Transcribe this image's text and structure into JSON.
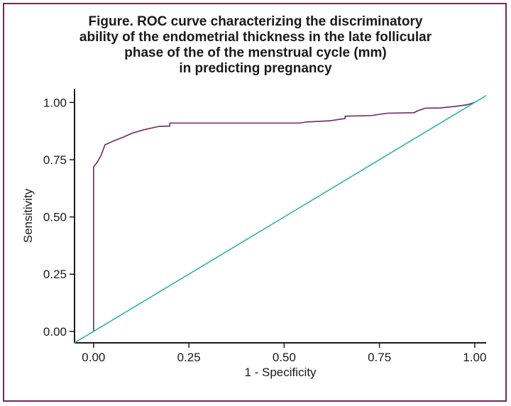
{
  "chart_data": {
    "type": "line",
    "title_lines": [
      "Figure. ROC curve characterizing the discriminatory",
      "ability of the endometrial thickness in the late follicular",
      "phase of the of the menstrual cycle (mm)",
      "in predicting pregnancy"
    ],
    "xlabel": "1 - Specificity",
    "ylabel": "Sensitivity",
    "xlim": [
      -0.05,
      1.03
    ],
    "ylim": [
      -0.05,
      1.06
    ],
    "xticks": [
      0.0,
      0.25,
      0.5,
      0.75,
      1.0
    ],
    "xtick_labels": [
      "0.00",
      "0.25",
      "0.50",
      "0.75",
      "1.00"
    ],
    "yticks": [
      0.0,
      0.25,
      0.5,
      0.75,
      1.0
    ],
    "ytick_labels": [
      "0.00",
      "0.25",
      "0.50",
      "0.75",
      "1.00"
    ],
    "grid": false,
    "series": [
      {
        "color": "#6b2a5c",
        "x": [
          0.0,
          0.0,
          0.01,
          0.02,
          0.03,
          0.05,
          0.08,
          0.1,
          0.13,
          0.17,
          0.2,
          0.2,
          0.54,
          0.56,
          0.62,
          0.64,
          0.66,
          0.66,
          0.73,
          0.77,
          0.84,
          0.85,
          0.87,
          0.91,
          0.96,
          0.98,
          1.0
        ],
        "y": [
          0.0,
          0.718,
          0.74,
          0.77,
          0.815,
          0.83,
          0.85,
          0.865,
          0.88,
          0.895,
          0.897,
          0.91,
          0.91,
          0.915,
          0.92,
          0.925,
          0.93,
          0.94,
          0.943,
          0.953,
          0.955,
          0.963,
          0.975,
          0.976,
          0.985,
          0.99,
          1.0
        ]
      },
      {
        "color": "#2ab6a6",
        "x": [
          -0.05,
          1.03
        ],
        "y": [
          -0.05,
          1.03
        ]
      }
    ]
  }
}
